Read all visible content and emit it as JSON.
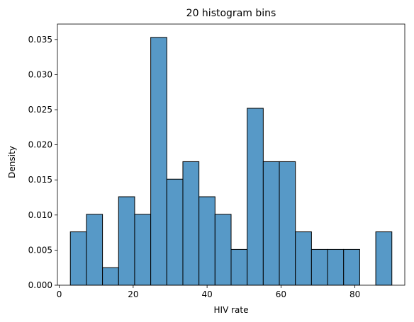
{
  "chart_data": {
    "type": "bar",
    "title": "20 histogram bins",
    "xlabel": "HIV rate",
    "ylabel": "Density",
    "xlim": [
      -0.5,
      93.5
    ],
    "ylim": [
      0,
      0.0372
    ],
    "x_ticks": [
      0,
      20,
      40,
      60,
      80
    ],
    "y_ticks": [
      0.0,
      0.005,
      0.01,
      0.015,
      0.02,
      0.025,
      0.03,
      0.035
    ],
    "y_tick_labels": [
      "0.000",
      "0.005",
      "0.010",
      "0.015",
      "0.020",
      "0.025",
      "0.030",
      "0.035"
    ],
    "bin_edges": [
      3.0,
      7.35,
      11.7,
      16.05,
      20.4,
      24.75,
      29.1,
      33.45,
      37.8,
      42.15,
      46.5,
      50.85,
      55.2,
      59.55,
      63.9,
      68.25,
      72.6,
      76.95,
      81.3,
      85.65,
      90.0
    ],
    "values": [
      0.0076,
      0.0101,
      0.0025,
      0.0126,
      0.0101,
      0.0353,
      0.0151,
      0.0176,
      0.0126,
      0.0101,
      0.0051,
      0.0252,
      0.0176,
      0.0176,
      0.0076,
      0.0051,
      0.0051,
      0.0051,
      0.0,
      0.0076
    ],
    "bar_color": "#5799c7",
    "edge_color": "#000000",
    "grid": false,
    "legend": false
  }
}
